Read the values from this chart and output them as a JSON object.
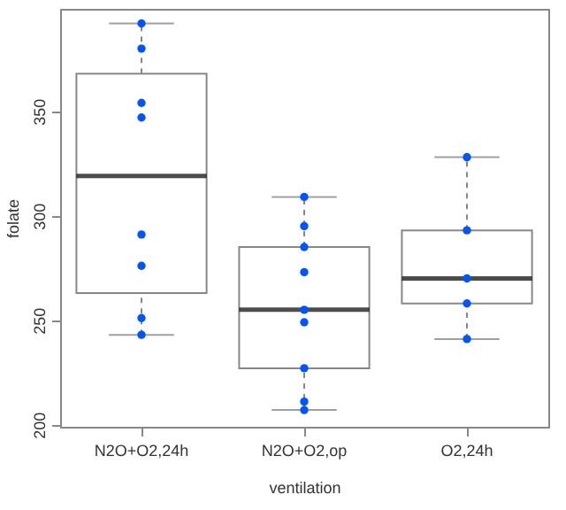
{
  "chart_data": {
    "type": "box",
    "xlabel": "ventilation",
    "ylabel": "folate",
    "categories": [
      "N2O+O2,24h",
      "N2O+O2,op",
      "O2,24h"
    ],
    "boxes": [
      {
        "low": 243,
        "q1": 263,
        "median": 319,
        "q3": 368,
        "high": 392
      },
      {
        "low": 207,
        "q1": 227,
        "median": 255,
        "q3": 285,
        "high": 309
      },
      {
        "low": 241,
        "q1": 258,
        "median": 270,
        "q3": 293,
        "high": 328
      }
    ],
    "series": [
      {
        "type": "scatter",
        "color": "#0055ff",
        "x": [
          "N2O+O2,24h",
          "N2O+O2,24h",
          "N2O+O2,24h",
          "N2O+O2,24h",
          "N2O+O2,24h",
          "N2O+O2,24h",
          "N2O+O2,24h",
          "N2O+O2,24h",
          "N2O+O2,op",
          "N2O+O2,op",
          "N2O+O2,op",
          "N2O+O2,op",
          "N2O+O2,op",
          "N2O+O2,op",
          "N2O+O2,op",
          "N2O+O2,op",
          "N2O+O2,op",
          "O2,24h",
          "O2,24h",
          "O2,24h",
          "O2,24h",
          "O2,24h"
        ],
        "values": [
          392,
          380,
          354,
          347,
          291,
          276,
          251,
          243,
          309,
          295,
          285,
          273,
          255,
          249,
          227,
          211,
          207,
          328,
          293,
          270,
          258,
          241
        ]
      }
    ],
    "ylim": [
      199,
      399
    ],
    "yticks": [
      200,
      250,
      300,
      350
    ],
    "grid": false,
    "marker": "circle"
  }
}
